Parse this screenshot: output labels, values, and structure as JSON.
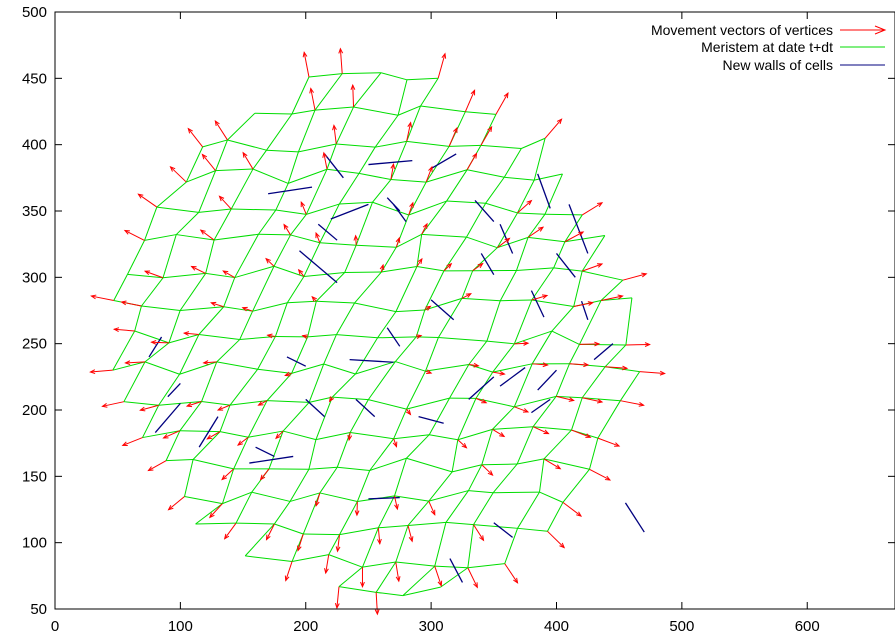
{
  "chart_data": {
    "type": "scatter",
    "title": "",
    "xlabel": "",
    "ylabel": "",
    "xlim": [
      0,
      670
    ],
    "ylim": [
      50,
      500
    ],
    "x_ticks": [
      0,
      100,
      200,
      300,
      400,
      500,
      600
    ],
    "y_ticks": [
      50,
      100,
      150,
      200,
      250,
      300,
      350,
      400,
      450,
      500
    ],
    "x_tick_labels": [
      "0",
      "100",
      "200",
      "300",
      "400",
      "500",
      "600"
    ],
    "y_tick_labels": [
      "50",
      "100",
      "150",
      "200",
      "250",
      "300",
      "350",
      "400",
      "450",
      "500"
    ],
    "grid": false,
    "legend_position": "top-right",
    "colors": {
      "vectors": "#ff0000",
      "meristem": "#00dd00",
      "new_walls": "#00007f"
    },
    "series": [
      {
        "name": "Movement vectors of vertices",
        "kind": "vector"
      },
      {
        "name": "Meristem at date t+dt",
        "kind": "polygon-mesh"
      },
      {
        "name": "New walls of cells",
        "kind": "segment"
      }
    ],
    "meristem_extent": {
      "x": [
        40,
        470
      ],
      "y": [
        52,
        458
      ]
    },
    "new_walls": [
      [
        [
          215,
          393
        ],
        [
          230,
          375
        ]
      ],
      [
        [
          250,
          385
        ],
        [
          285,
          388
        ]
      ],
      [
        [
          300,
          382
        ],
        [
          320,
          393
        ]
      ],
      [
        [
          170,
          363
        ],
        [
          205,
          368
        ]
      ],
      [
        [
          220,
          344
        ],
        [
          250,
          355
        ]
      ],
      [
        [
          270,
          355
        ],
        [
          280,
          342
        ]
      ],
      [
        [
          265,
          360
        ],
        [
          275,
          350
        ]
      ],
      [
        [
          385,
          378
        ],
        [
          395,
          352
        ]
      ],
      [
        [
          210,
          340
        ],
        [
          225,
          328
        ]
      ],
      [
        [
          335,
          358
        ],
        [
          350,
          342
        ]
      ],
      [
        [
          355,
          340
        ],
        [
          365,
          318
        ]
      ],
      [
        [
          195,
          320
        ],
        [
          225,
          296
        ]
      ],
      [
        [
          410,
          355
        ],
        [
          425,
          318
        ]
      ],
      [
        [
          340,
          318
        ],
        [
          350,
          302
        ]
      ],
      [
        [
          400,
          318
        ],
        [
          415,
          300
        ]
      ],
      [
        [
          380,
          290
        ],
        [
          390,
          270
        ]
      ],
      [
        [
          420,
          282
        ],
        [
          425,
          268
        ]
      ],
      [
        [
          300,
          283
        ],
        [
          318,
          268
        ]
      ],
      [
        [
          265,
          262
        ],
        [
          275,
          248
        ]
      ],
      [
        [
          235,
          238
        ],
        [
          270,
          236
        ]
      ],
      [
        [
          90,
          210
        ],
        [
          100,
          220
        ]
      ],
      [
        [
          75,
          240
        ],
        [
          85,
          255
        ]
      ],
      [
        [
          80,
          183
        ],
        [
          100,
          205
        ]
      ],
      [
        [
          115,
          172
        ],
        [
          130,
          195
        ]
      ],
      [
        [
          155,
          160
        ],
        [
          190,
          165
        ]
      ],
      [
        [
          160,
          172
        ],
        [
          175,
          165
        ]
      ],
      [
        [
          200,
          208
        ],
        [
          215,
          195
        ]
      ],
      [
        [
          240,
          208
        ],
        [
          255,
          195
        ]
      ],
      [
        [
          290,
          195
        ],
        [
          310,
          190
        ]
      ],
      [
        [
          330,
          208
        ],
        [
          350,
          225
        ]
      ],
      [
        [
          355,
          218
        ],
        [
          375,
          232
        ]
      ],
      [
        [
          380,
          198
        ],
        [
          395,
          208
        ]
      ],
      [
        [
          385,
          215
        ],
        [
          400,
          230
        ]
      ],
      [
        [
          430,
          238
        ],
        [
          445,
          250
        ]
      ],
      [
        [
          250,
          133
        ],
        [
          275,
          134
        ]
      ],
      [
        [
          315,
          88
        ],
        [
          325,
          70
        ]
      ],
      [
        [
          350,
          115
        ],
        [
          365,
          104
        ]
      ],
      [
        [
          455,
          130
        ],
        [
          470,
          108
        ]
      ],
      [
        [
          185,
          240
        ],
        [
          200,
          233
        ]
      ]
    ]
  },
  "legend": {
    "entries": [
      {
        "label": "Movement vectors of vertices"
      },
      {
        "label": "Meristem at date t+dt"
      },
      {
        "label": "New walls of cells"
      }
    ]
  }
}
